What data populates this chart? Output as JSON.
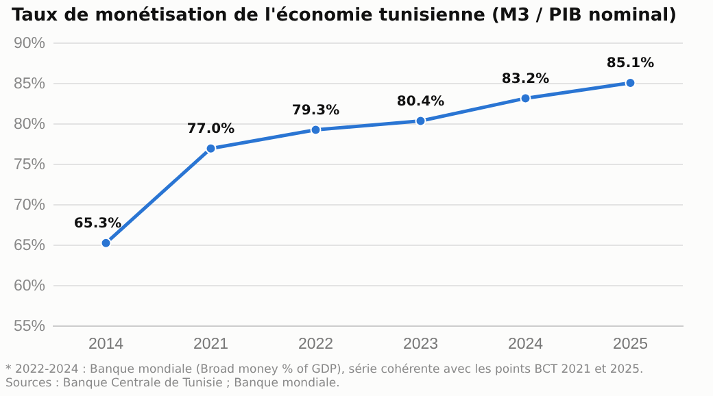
{
  "chart_data": {
    "type": "line",
    "title": "Taux de monétisation de l'économie tunisienne (M3 / PIB nominal)",
    "categories": [
      "2014",
      "2021",
      "2022",
      "2023",
      "2024",
      "2025"
    ],
    "series": [
      {
        "color": "#2a75d3",
        "values": [
          65.3,
          77.0,
          79.3,
          80.4,
          83.2,
          85.1
        ],
        "value_labels": [
          "65.3%",
          "77.0%",
          "79.3%",
          "80.4%",
          "83.2%",
          "85.1%"
        ]
      }
    ],
    "ylim": [
      55,
      90
    ],
    "yticks": [
      {
        "value": 55,
        "label": "55%"
      },
      {
        "value": 60,
        "label": "60%"
      },
      {
        "value": 65,
        "label": "65%"
      },
      {
        "value": 70,
        "label": "70%"
      },
      {
        "value": 75,
        "label": "75%"
      },
      {
        "value": 80,
        "label": "80%"
      },
      {
        "value": 85,
        "label": "85%"
      },
      {
        "value": 90,
        "label": "90%"
      }
    ],
    "grid": "y",
    "legend": false,
    "marker": "circle",
    "line_style": "solid",
    "annotations": [
      "* 2022-2024 : Banque mondiale (Broad money % of GDP), série cohérente avec les points BCT 2021 et 2025.",
      "Sources : Banque Centrale de Tunisie ; Banque mondiale."
    ]
  }
}
